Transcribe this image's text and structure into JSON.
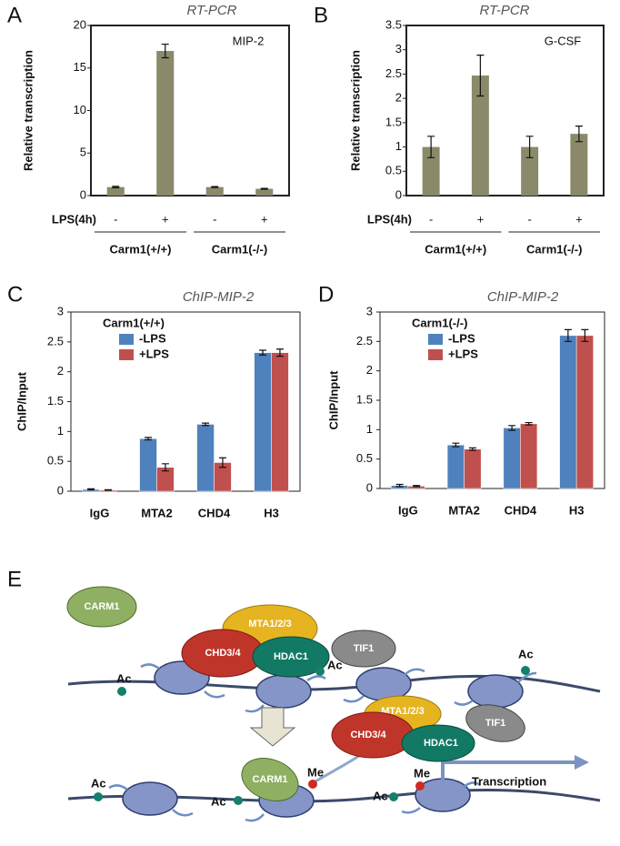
{
  "chart_data": [
    {
      "type": "bar",
      "panel": "A",
      "title": "RT-PCR",
      "annotation": "MIP-2",
      "y_label": "Relative transcription",
      "x_row_label": "LPS(4h)",
      "categories": [
        "-",
        "+",
        "-",
        "+"
      ],
      "group_labels": [
        "Carm1(+/+)",
        "Carm1(-/-)"
      ],
      "values": [
        1,
        17,
        1,
        0.8
      ],
      "errors": [
        0.08,
        0.8,
        0.06,
        0.05
      ],
      "color": "#8a8a6a",
      "ylim": [
        0,
        20
      ],
      "yticks": [
        0,
        5,
        10,
        15,
        20
      ]
    },
    {
      "type": "bar",
      "panel": "B",
      "title": "RT-PCR",
      "annotation": "G-CSF",
      "y_label": "Relative transcription",
      "x_row_label": "LPS(4h)",
      "categories": [
        "-",
        "+",
        "-",
        "+"
      ],
      "group_labels": [
        "Carm1(+/+)",
        "Carm1(-/-)"
      ],
      "values": [
        1,
        2.47,
        1,
        1.27
      ],
      "errors": [
        0.22,
        0.42,
        0.22,
        0.16
      ],
      "color": "#8a8a6a",
      "ylim": [
        0,
        3.5
      ],
      "yticks": [
        0,
        0.5,
        1,
        1.5,
        2,
        2.5,
        3,
        3.5
      ]
    },
    {
      "type": "bar",
      "panel": "C",
      "title": "ChIP-MIP-2",
      "y_label": "ChIP/Input",
      "legend_title": "Carm1(+/+)",
      "categories": [
        "IgG",
        "MTA2",
        "CHD4",
        "H3"
      ],
      "series": [
        {
          "name": "-LPS",
          "color": "#4f81bd",
          "values": [
            0.03,
            0.88,
            1.12,
            2.32
          ],
          "errors": [
            0.01,
            0.02,
            0.02,
            0.04
          ]
        },
        {
          "name": "+LPS",
          "color": "#c0504d",
          "values": [
            0.02,
            0.4,
            0.48,
            2.32
          ],
          "errors": [
            0.005,
            0.06,
            0.08,
            0.06
          ]
        }
      ],
      "ylim": [
        0,
        3
      ],
      "yticks": [
        0,
        0.5,
        1,
        1.5,
        2,
        2.5,
        3
      ]
    },
    {
      "type": "bar",
      "panel": "D",
      "title": "ChIP-MIP-2",
      "y_label": "ChIP/Input",
      "legend_title": "Carm1(-/-)",
      "categories": [
        "IgG",
        "MTA2",
        "CHD4",
        "H3"
      ],
      "series": [
        {
          "name": "-LPS",
          "color": "#4f81bd",
          "values": [
            0.05,
            0.74,
            1.03,
            2.6
          ],
          "errors": [
            0.02,
            0.03,
            0.04,
            0.1
          ]
        },
        {
          "name": "+LPS",
          "color": "#c0504d",
          "values": [
            0.04,
            0.67,
            1.1,
            2.6
          ],
          "errors": [
            0.01,
            0.02,
            0.02,
            0.1
          ]
        }
      ],
      "ylim": [
        0,
        3
      ],
      "yticks": [
        0,
        0.5,
        1,
        1.5,
        2,
        2.5,
        3
      ]
    }
  ],
  "diagram": {
    "panel": "E",
    "top": {
      "carm1": "CARM1",
      "mta": "MTA1/2/3",
      "chd": "CHD3/4",
      "hdac": "HDAC1",
      "tif": "TIF1",
      "ac": [
        "Ac",
        "Ac",
        "Ac"
      ]
    },
    "bottom": {
      "carm1": "CARM1",
      "mta": "MTA1/2/3",
      "chd": "CHD3/4",
      "hdac": "HDAC1",
      "tif": "TIF1",
      "ac": [
        "Ac",
        "Ac",
        "Ac"
      ],
      "me": [
        "Me",
        "Me"
      ],
      "transcription": "Transcription"
    }
  }
}
